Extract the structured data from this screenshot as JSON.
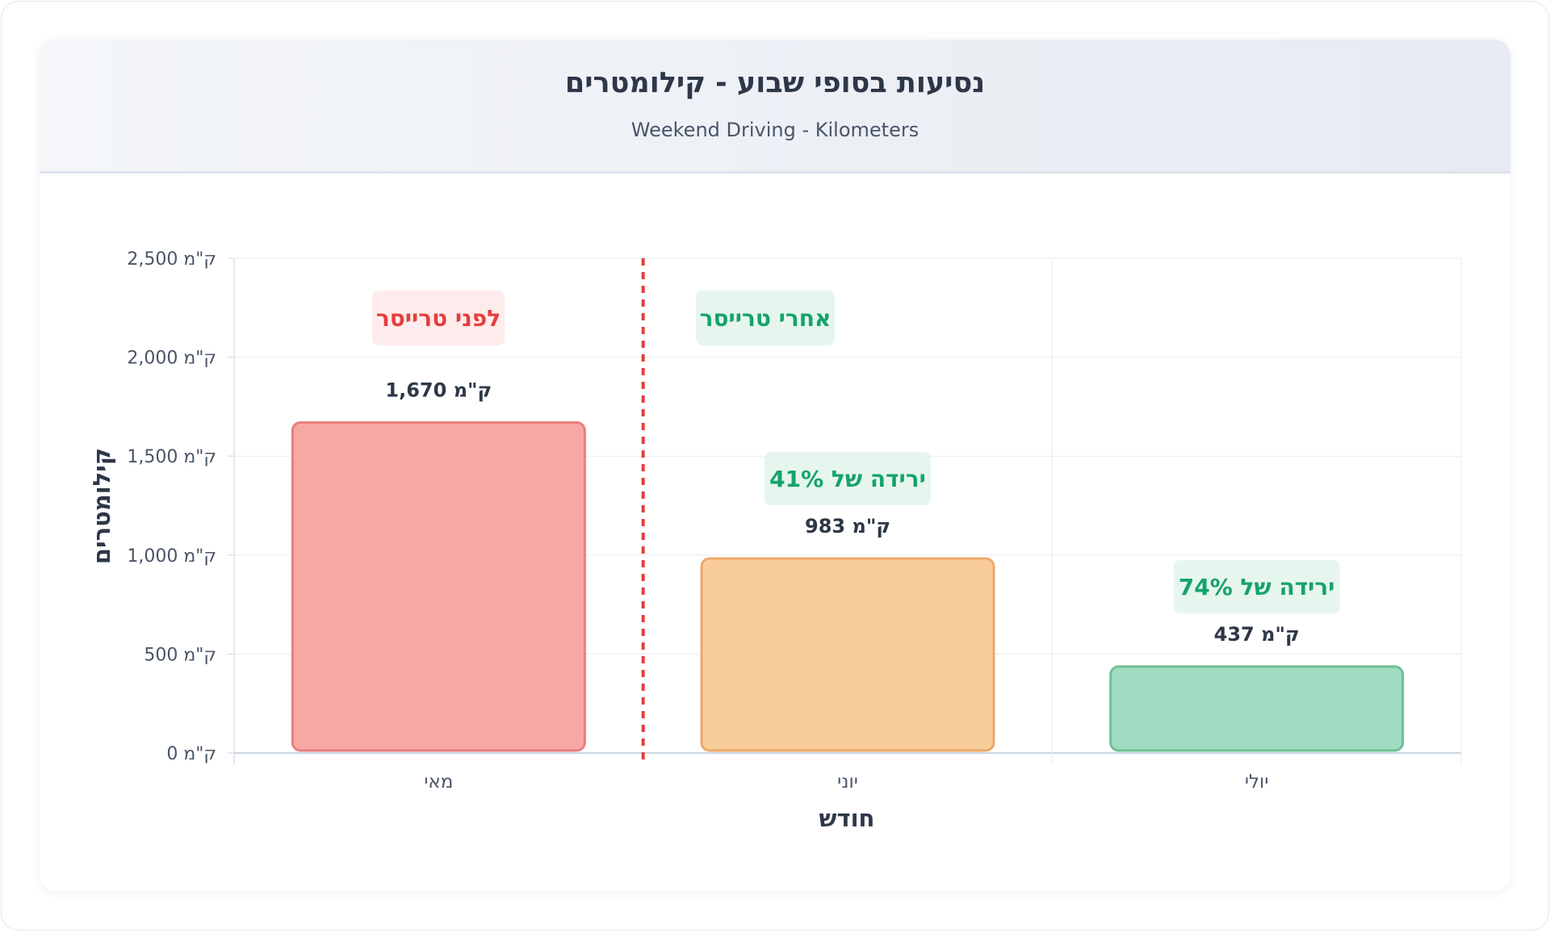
{
  "header": {
    "title": "נסיעות בסופי שבוע - קילומטרים",
    "subtitle": "Weekend Driving - Kilometers"
  },
  "chart_data": {
    "type": "bar",
    "xlabel": "חודש",
    "ylabel": "קילומטרים",
    "ylim": [
      0,
      2500
    ],
    "yticks": [
      "0 ק\"מ",
      "500 ק\"מ",
      "1,000 ק\"מ",
      "1,500 ק\"מ",
      "2,000 ק\"מ",
      "2,500 ק\"מ"
    ],
    "ytick_values": [
      0,
      500,
      1000,
      1500,
      2000,
      2500
    ],
    "categories": [
      "מאי",
      "יוני",
      "יולי"
    ],
    "values": [
      1670,
      983,
      437
    ],
    "value_labels": [
      "1,670 ק\"מ",
      "983 ק\"מ",
      "437 ק\"מ"
    ],
    "bar_colors": [
      "#f8a8a4",
      "#f9cd9a",
      "#9fdcc2"
    ],
    "bar_border_colors": [
      "#e97e7e",
      "#eda86a",
      "#6fbf95"
    ],
    "annotations": {
      "before": "לפני טרייסר",
      "after": "אחרי טרייסר",
      "drop_june": "ירידה של 41%",
      "drop_july": "ירידה של 74%"
    },
    "divider_color": "#e53e3e",
    "grid": true,
    "legend": "none"
  },
  "colors": {
    "before_text": "#e53e3e",
    "before_bg": "#fdeceb",
    "after_text": "#16a36a",
    "after_bg": "#e6f6ee",
    "axis_text": "#4a5568",
    "label_text": "#2d3748"
  }
}
